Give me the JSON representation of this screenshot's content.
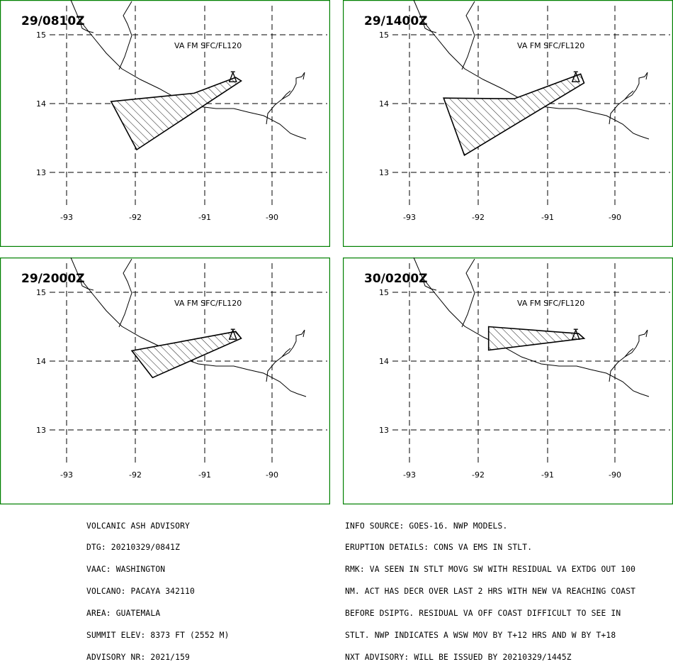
{
  "panels": [
    {
      "time_label": "29/0810Z",
      "layer_label": "VA FM SFC/FL120",
      "polygon": [
        [
          -92.35,
          14.03
        ],
        [
          -91.15,
          14.15
        ],
        [
          -90.55,
          14.38
        ],
        [
          -90.47,
          14.33
        ],
        [
          -91.98,
          13.33
        ]
      ]
    },
    {
      "time_label": "29/1400Z",
      "layer_label": "VA FM SFC/FL120",
      "polygon": [
        [
          -92.5,
          14.08
        ],
        [
          -91.48,
          14.07
        ],
        [
          -90.52,
          14.43
        ],
        [
          -90.47,
          14.3
        ],
        [
          -92.2,
          13.25
        ]
      ]
    },
    {
      "time_label": "29/2000Z",
      "layer_label": "VA FM SFC/FL120",
      "polygon": [
        [
          -92.05,
          14.15
        ],
        [
          -90.55,
          14.43
        ],
        [
          -90.47,
          14.33
        ],
        [
          -91.75,
          13.76
        ]
      ]
    },
    {
      "time_label": "30/0200Z",
      "layer_label": "VA FM SFC/FL120",
      "polygon": [
        [
          -91.85,
          14.5
        ],
        [
          -90.55,
          14.4
        ],
        [
          -90.47,
          14.33
        ],
        [
          -91.85,
          14.16
        ]
      ]
    }
  ],
  "map_axes": {
    "lon_ticks": [
      "-93",
      "-92",
      "-91",
      "-90"
    ],
    "lat_ticks": [
      "15",
      "14",
      "13"
    ],
    "lon_range": [
      -93.5,
      -89.2
    ],
    "lat_range": [
      12.42,
      15.5
    ]
  },
  "volcano": {
    "lon": -90.6,
    "lat": 14.38,
    "symbol": "triangle"
  },
  "advisory_left": [
    "VOLCANIC ASH ADVISORY",
    "DTG: 20210329/0841Z",
    "VAAC: WASHINGTON",
    "VOLCANO: PACAYA 342110",
    "AREA: GUATEMALA",
    "SUMMIT ELEV: 8373 FT (2552 M)",
    "ADVISORY NR: 2021/159"
  ],
  "advisory_right": [
    "INFO SOURCE: GOES-16. NWP MODELS.",
    "ERUPTION DETAILS: CONS VA EMS IN STLT.",
    "RMK: VA SEEN IN STLT MOVG SW WITH RESIDUAL VA EXTDG OUT 100",
    "NM. ACT HAS DECR OVER LAST 2 HRS WITH NEW VA REACHING COAST",
    "BEFORE DSIPTG. RESIDUAL VA OFF COAST DIFFICULT TO SEE IN",
    "STLT. NWP INDICATES A WSW MOV BY T+12 HRS AND W BY T+18",
    "NXT ADVISORY: WILL BE ISSUED BY 20210329/1445Z"
  ],
  "colors": {
    "frame": "#008000",
    "ink": "#000000",
    "background": "#ffffff"
  }
}
